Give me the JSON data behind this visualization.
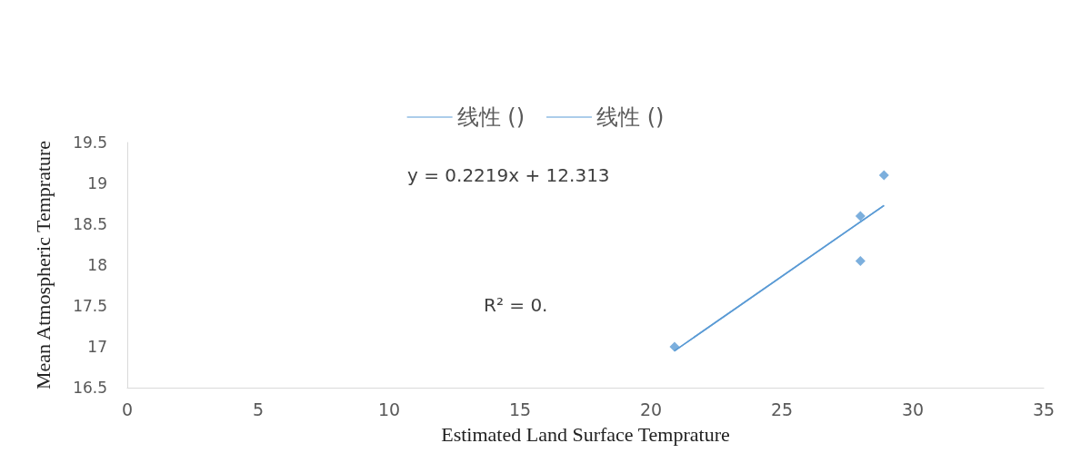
{
  "chart_data": {
    "type": "scatter",
    "xlabel": "Estimated Land Surface Temprature",
    "ylabel": "Mean Atmospheric Temprature",
    "annotations": [
      "y = 0.2219x + 12.313",
      "R² = 0."
    ],
    "series": [
      {
        "color": "#5b9bd5",
        "x": [
          20.9,
          28.0,
          28.0,
          28.9
        ],
        "values": [
          17.0,
          18.6,
          18.05,
          19.1
        ],
        "marker": "diamond"
      },
      {
        "type": "line",
        "name": "线性 ()",
        "color": "#5b9bd5",
        "x": [
          20.9,
          28.9
        ],
        "values": [
          16.95,
          18.73
        ],
        "marker": "none"
      },
      {
        "type": "line",
        "name": "线性 ()",
        "color": "#5b9bd5",
        "x": [
          20.9,
          28.9
        ],
        "values": [
          16.95,
          18.73
        ],
        "marker": "none"
      }
    ],
    "xlim": [
      0,
      35
    ],
    "xticks": [
      0,
      5,
      10,
      15,
      20,
      25,
      30,
      35
    ],
    "ylim": [
      16.5,
      19.5
    ],
    "yticks": [
      16.5,
      17,
      17.5,
      18,
      18.5,
      19,
      19.5
    ],
    "grid": false,
    "legend": "top"
  }
}
